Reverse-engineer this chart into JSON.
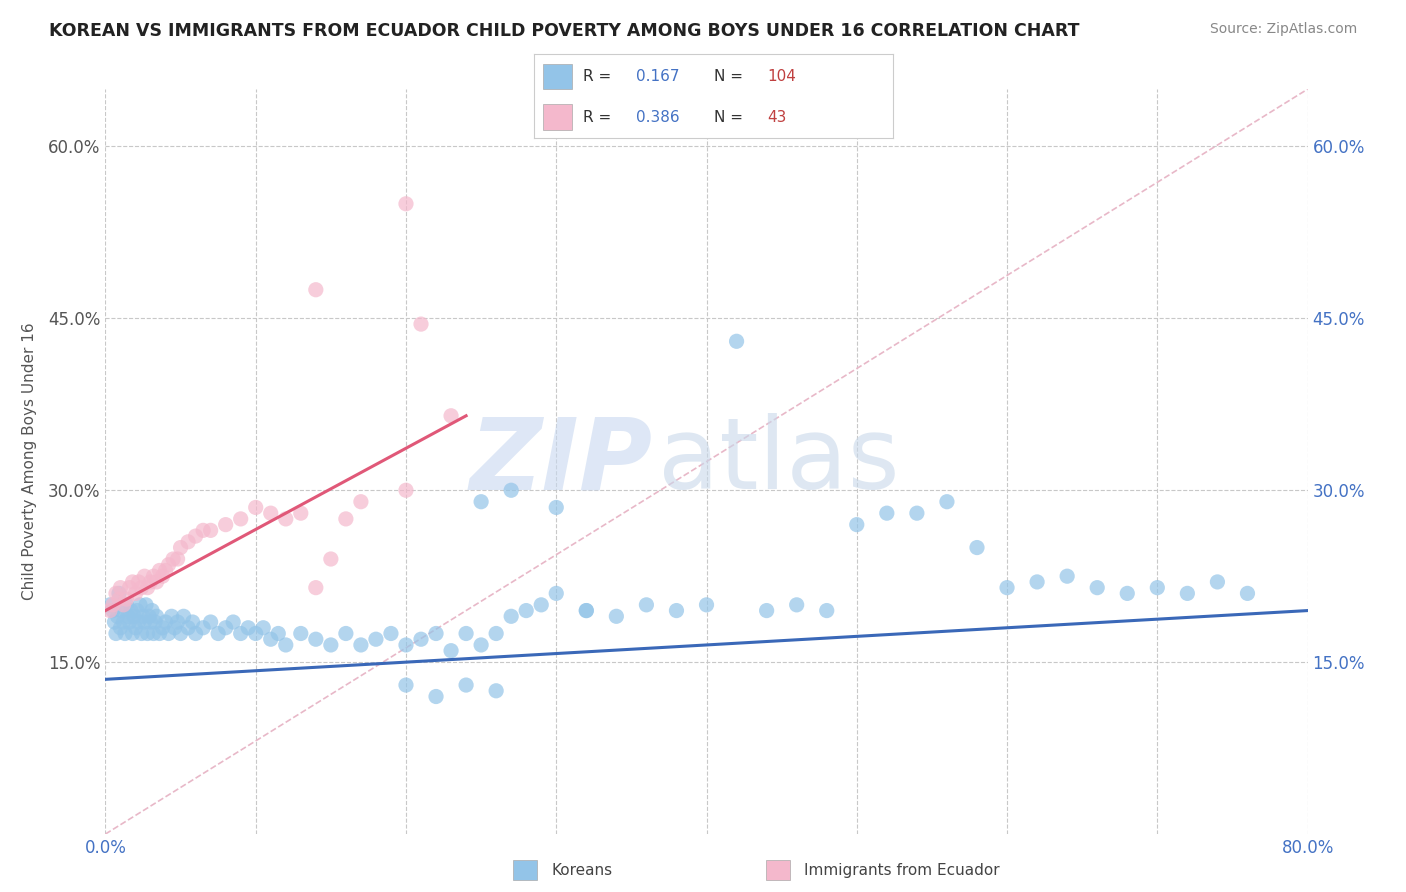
{
  "title": "KOREAN VS IMMIGRANTS FROM ECUADOR CHILD POVERTY AMONG BOYS UNDER 16 CORRELATION CHART",
  "source": "Source: ZipAtlas.com",
  "ylabel": "Child Poverty Among Boys Under 16",
  "xlim": [
    0.0,
    0.8
  ],
  "ylim": [
    0.0,
    0.65
  ],
  "xticks": [
    0.0,
    0.1,
    0.2,
    0.3,
    0.4,
    0.5,
    0.6,
    0.7,
    0.8
  ],
  "xticklabels": [
    "0.0%",
    "",
    "",
    "",
    "",
    "",
    "",
    "",
    "80.0%"
  ],
  "ytick_positions": [
    0.15,
    0.3,
    0.45,
    0.6
  ],
  "ytick_labels": [
    "15.0%",
    "30.0%",
    "45.0%",
    "60.0%"
  ],
  "legend_label1": "Koreans",
  "legend_label2": "Immigrants from Ecuador",
  "R1": 0.167,
  "N1": 104,
  "R2": 0.386,
  "N2": 43,
  "color_korean": "#93c4e8",
  "color_ecuador": "#f4b8cc",
  "color_trend_korean": "#3a68b8",
  "color_trend_ecuador": "#e05878",
  "watermark_zip": "ZIP",
  "watermark_atlas": "atlas",
  "background_color": "#ffffff",
  "grid_color": "#c8c8c8",
  "korean_x": [
    0.003,
    0.005,
    0.006,
    0.007,
    0.008,
    0.009,
    0.01,
    0.011,
    0.012,
    0.013,
    0.014,
    0.015,
    0.016,
    0.017,
    0.018,
    0.019,
    0.02,
    0.021,
    0.022,
    0.023,
    0.024,
    0.025,
    0.026,
    0.027,
    0.028,
    0.029,
    0.03,
    0.031,
    0.032,
    0.033,
    0.034,
    0.036,
    0.038,
    0.04,
    0.042,
    0.044,
    0.046,
    0.048,
    0.05,
    0.052,
    0.055,
    0.058,
    0.06,
    0.065,
    0.07,
    0.075,
    0.08,
    0.085,
    0.09,
    0.095,
    0.1,
    0.105,
    0.11,
    0.115,
    0.12,
    0.13,
    0.14,
    0.15,
    0.16,
    0.17,
    0.18,
    0.19,
    0.2,
    0.21,
    0.22,
    0.23,
    0.24,
    0.25,
    0.26,
    0.27,
    0.28,
    0.29,
    0.3,
    0.32,
    0.34,
    0.36,
    0.38,
    0.4,
    0.42,
    0.44,
    0.46,
    0.48,
    0.5,
    0.52,
    0.54,
    0.56,
    0.58,
    0.6,
    0.62,
    0.64,
    0.66,
    0.68,
    0.7,
    0.72,
    0.74,
    0.76,
    0.25,
    0.27,
    0.3,
    0.32,
    0.2,
    0.22,
    0.24,
    0.26
  ],
  "korean_y": [
    0.2,
    0.195,
    0.185,
    0.175,
    0.19,
    0.21,
    0.18,
    0.195,
    0.185,
    0.175,
    0.2,
    0.19,
    0.185,
    0.195,
    0.175,
    0.19,
    0.18,
    0.195,
    0.185,
    0.2,
    0.175,
    0.19,
    0.185,
    0.2,
    0.175,
    0.19,
    0.185,
    0.195,
    0.175,
    0.185,
    0.19,
    0.175,
    0.18,
    0.185,
    0.175,
    0.19,
    0.18,
    0.185,
    0.175,
    0.19,
    0.18,
    0.185,
    0.175,
    0.18,
    0.185,
    0.175,
    0.18,
    0.185,
    0.175,
    0.18,
    0.175,
    0.18,
    0.17,
    0.175,
    0.165,
    0.175,
    0.17,
    0.165,
    0.175,
    0.165,
    0.17,
    0.175,
    0.165,
    0.17,
    0.175,
    0.16,
    0.175,
    0.165,
    0.175,
    0.19,
    0.195,
    0.2,
    0.21,
    0.195,
    0.19,
    0.2,
    0.195,
    0.2,
    0.43,
    0.195,
    0.2,
    0.195,
    0.27,
    0.28,
    0.28,
    0.29,
    0.25,
    0.215,
    0.22,
    0.225,
    0.215,
    0.21,
    0.215,
    0.21,
    0.22,
    0.21,
    0.29,
    0.3,
    0.285,
    0.195,
    0.13,
    0.12,
    0.13,
    0.125
  ],
  "ecuador_x": [
    0.003,
    0.005,
    0.007,
    0.009,
    0.01,
    0.012,
    0.014,
    0.016,
    0.018,
    0.02,
    0.022,
    0.024,
    0.026,
    0.028,
    0.03,
    0.032,
    0.034,
    0.036,
    0.038,
    0.04,
    0.042,
    0.045,
    0.048,
    0.05,
    0.055,
    0.06,
    0.065,
    0.07,
    0.08,
    0.09,
    0.1,
    0.11,
    0.12,
    0.13,
    0.14,
    0.15,
    0.16,
    0.17,
    0.2,
    0.21,
    0.23,
    0.2,
    0.14
  ],
  "ecuador_y": [
    0.195,
    0.2,
    0.21,
    0.205,
    0.215,
    0.2,
    0.205,
    0.215,
    0.22,
    0.21,
    0.22,
    0.215,
    0.225,
    0.215,
    0.22,
    0.225,
    0.22,
    0.23,
    0.225,
    0.23,
    0.235,
    0.24,
    0.24,
    0.25,
    0.255,
    0.26,
    0.265,
    0.265,
    0.27,
    0.275,
    0.285,
    0.28,
    0.275,
    0.28,
    0.215,
    0.24,
    0.275,
    0.29,
    0.3,
    0.445,
    0.365,
    0.55,
    0.475
  ],
  "trend_korean_x0": 0.0,
  "trend_korean_x1": 0.8,
  "trend_korean_y0": 0.135,
  "trend_korean_y1": 0.195,
  "trend_ecuador_x0": 0.0,
  "trend_ecuador_x1": 0.24,
  "trend_ecuador_y0": 0.195,
  "trend_ecuador_y1": 0.365,
  "diag_color": "#e8b8c8"
}
